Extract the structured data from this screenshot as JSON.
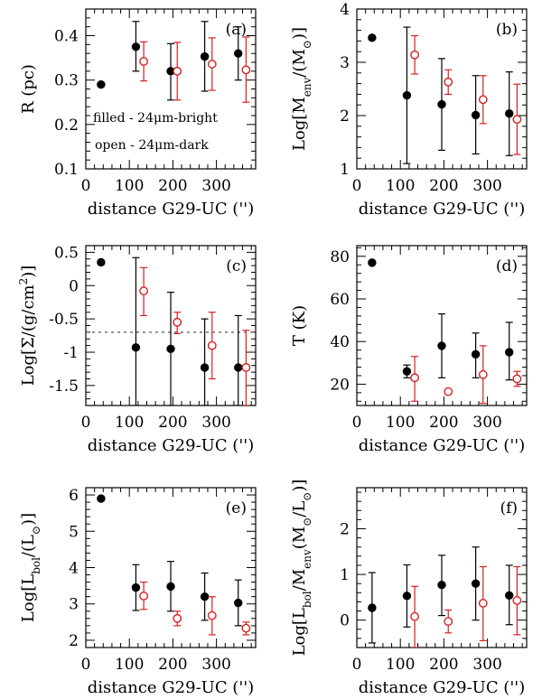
{
  "figure_colors": {
    "filled": "#000000",
    "open": "#d62020",
    "frame": "#000000",
    "reference_line": "#555555"
  },
  "legend": {
    "filled": "filled - 24μm-bright",
    "open": "open - 24μm-dark"
  },
  "chart_data": [
    {
      "type": "scatter",
      "panel_label": "(a)",
      "xlabel": "distance G29-UC ('')",
      "ylabel": "R (pc)",
      "xlim": [
        0,
        390
      ],
      "ylim": [
        0.1,
        0.46
      ],
      "xticks": [
        0,
        100,
        200,
        300
      ],
      "xtick_labels": [
        "0",
        "100",
        "200",
        "300"
      ],
      "yticks": [
        0.1,
        0.2,
        0.3,
        0.4
      ],
      "ytick_labels": [
        "0.1",
        "0.2",
        "0.3",
        "0.4"
      ],
      "show_legend": true,
      "series": [
        {
          "name": "filled",
          "marker": "filled-circle",
          "points": [
            {
              "x": 35,
              "y": 0.29,
              "lo": null,
              "hi": null
            },
            {
              "x": 115,
              "y": 0.375,
              "lo": 0.32,
              "hi": 0.432
            },
            {
              "x": 195,
              "y": 0.32,
              "lo": 0.255,
              "hi": 0.382
            },
            {
              "x": 273,
              "y": 0.353,
              "lo": 0.275,
              "hi": 0.432
            },
            {
              "x": 350,
              "y": 0.36,
              "lo": 0.3,
              "hi": 0.42
            }
          ]
        },
        {
          "name": "open",
          "marker": "open-circle",
          "points": [
            {
              "x": 133,
              "y": 0.342,
              "lo": 0.298,
              "hi": 0.386
            },
            {
              "x": 210,
              "y": 0.32,
              "lo": 0.255,
              "hi": 0.385
            },
            {
              "x": 290,
              "y": 0.336,
              "lo": 0.277,
              "hi": 0.395
            },
            {
              "x": 368,
              "y": 0.323,
              "lo": 0.25,
              "hi": 0.397
            }
          ]
        }
      ]
    },
    {
      "type": "scatter",
      "panel_label": "(b)",
      "xlabel": "distance G29-UC ('')",
      "ylabel": "Log[Menv/(M⊙)]",
      "xlim": [
        0,
        390
      ],
      "ylim": [
        1,
        4
      ],
      "xticks": [
        0,
        100,
        200,
        300
      ],
      "xtick_labels": [
        "0",
        "100",
        "200",
        "300"
      ],
      "yticks": [
        1,
        2,
        3,
        4
      ],
      "ytick_labels": [
        "1",
        "2",
        "3",
        "4"
      ],
      "series": [
        {
          "name": "filled",
          "marker": "filled-circle",
          "points": [
            {
              "x": 35,
              "y": 3.46,
              "lo": null,
              "hi": null
            },
            {
              "x": 115,
              "y": 2.38,
              "lo": 1.1,
              "hi": 3.66
            },
            {
              "x": 195,
              "y": 2.21,
              "lo": 1.35,
              "hi": 3.07
            },
            {
              "x": 273,
              "y": 2.01,
              "lo": 1.28,
              "hi": 2.75
            },
            {
              "x": 350,
              "y": 2.04,
              "lo": 1.25,
              "hi": 2.82
            }
          ]
        },
        {
          "name": "open",
          "marker": "open-circle",
          "points": [
            {
              "x": 133,
              "y": 3.14,
              "lo": 2.78,
              "hi": 3.5
            },
            {
              "x": 210,
              "y": 2.63,
              "lo": 2.4,
              "hi": 2.86
            },
            {
              "x": 290,
              "y": 2.3,
              "lo": 1.85,
              "hi": 2.75
            },
            {
              "x": 368,
              "y": 1.93,
              "lo": 1.27,
              "hi": 2.59
            }
          ]
        }
      ]
    },
    {
      "type": "scatter",
      "panel_label": "(c)",
      "xlabel": "distance G29-UC ('')",
      "ylabel": "Log[Σ/(g/cm²)]",
      "xlim": [
        0,
        390
      ],
      "ylim": [
        -1.8,
        0.6
      ],
      "xticks": [
        0,
        100,
        200,
        300
      ],
      "xtick_labels": [
        "0",
        "100",
        "200",
        "300"
      ],
      "yticks": [
        -1.5,
        -1,
        -0.5,
        0,
        0.5
      ],
      "ytick_labels": [
        "-1.5",
        "-1",
        "-0.5",
        "0",
        "0.5"
      ],
      "reference_line": -0.7,
      "series": [
        {
          "name": "filled",
          "marker": "filled-circle",
          "points": [
            {
              "x": 35,
              "y": 0.35,
              "lo": null,
              "hi": null
            },
            {
              "x": 115,
              "y": -0.93,
              "lo": -1.8,
              "hi": 0.42
            },
            {
              "x": 195,
              "y": -0.95,
              "lo": -1.8,
              "hi": -0.1
            },
            {
              "x": 273,
              "y": -1.23,
              "lo": -1.8,
              "hi": -0.5
            },
            {
              "x": 350,
              "y": -1.23,
              "lo": -1.8,
              "hi": -0.45
            }
          ]
        },
        {
          "name": "open",
          "marker": "open-circle",
          "points": [
            {
              "x": 133,
              "y": -0.08,
              "lo": -0.45,
              "hi": 0.27
            },
            {
              "x": 210,
              "y": -0.55,
              "lo": -0.72,
              "hi": -0.4
            },
            {
              "x": 290,
              "y": -0.9,
              "lo": -1.4,
              "hi": -0.4
            },
            {
              "x": 368,
              "y": -1.23,
              "lo": -1.8,
              "hi": -0.67
            }
          ]
        }
      ]
    },
    {
      "type": "scatter",
      "panel_label": "(d)",
      "xlabel": "distance G29-UC ('')",
      "ylabel": "T (K)",
      "xlim": [
        0,
        390
      ],
      "ylim": [
        10,
        85
      ],
      "xticks": [
        0,
        100,
        200,
        300
      ],
      "xtick_labels": [
        "0",
        "100",
        "200",
        "300"
      ],
      "yticks": [
        20,
        40,
        60,
        80
      ],
      "ytick_labels": [
        "20",
        "40",
        "60",
        "80"
      ],
      "series": [
        {
          "name": "filled",
          "marker": "filled-circle",
          "points": [
            {
              "x": 35,
              "y": 77,
              "lo": null,
              "hi": null
            },
            {
              "x": 115,
              "y": 26,
              "lo": 23,
              "hi": 29
            },
            {
              "x": 195,
              "y": 38,
              "lo": 23,
              "hi": 53
            },
            {
              "x": 273,
              "y": 34,
              "lo": 23,
              "hi": 44
            },
            {
              "x": 350,
              "y": 35,
              "lo": 22,
              "hi": 49
            }
          ]
        },
        {
          "name": "open",
          "marker": "open-circle",
          "points": [
            {
              "x": 133,
              "y": 23,
              "lo": 12,
              "hi": 33
            },
            {
              "x": 210,
              "y": 16.5,
              "lo": 15.5,
              "hi": 17.5
            },
            {
              "x": 290,
              "y": 24.5,
              "lo": 11,
              "hi": 38
            },
            {
              "x": 368,
              "y": 22.5,
              "lo": 19,
              "hi": 26
            }
          ]
        }
      ]
    },
    {
      "type": "scatter",
      "panel_label": "(e)",
      "xlabel": "distance G29-UC ('')",
      "ylabel": "Log[Lbol/(L⊙)]",
      "xlim": [
        0,
        390
      ],
      "ylim": [
        1.8,
        6.2
      ],
      "xticks": [
        0,
        100,
        200,
        300
      ],
      "xtick_labels": [
        "0",
        "100",
        "200",
        "300"
      ],
      "yticks": [
        2,
        3,
        4,
        5,
        6
      ],
      "ytick_labels": [
        "2",
        "3",
        "4",
        "5",
        "6"
      ],
      "series": [
        {
          "name": "filled",
          "marker": "filled-circle",
          "points": [
            {
              "x": 35,
              "y": 5.9,
              "lo": null,
              "hi": null
            },
            {
              "x": 115,
              "y": 3.45,
              "lo": 2.82,
              "hi": 4.08
            },
            {
              "x": 195,
              "y": 3.48,
              "lo": 2.8,
              "hi": 4.17
            },
            {
              "x": 273,
              "y": 3.2,
              "lo": 2.55,
              "hi": 3.85
            },
            {
              "x": 350,
              "y": 3.03,
              "lo": 2.4,
              "hi": 3.66
            }
          ]
        },
        {
          "name": "open",
          "marker": "open-circle",
          "points": [
            {
              "x": 133,
              "y": 3.22,
              "lo": 2.85,
              "hi": 3.6
            },
            {
              "x": 210,
              "y": 2.6,
              "lo": 2.4,
              "hi": 2.8
            },
            {
              "x": 290,
              "y": 2.68,
              "lo": 2.15,
              "hi": 3.2
            },
            {
              "x": 368,
              "y": 2.33,
              "lo": 2.15,
              "hi": 2.5
            }
          ]
        }
      ]
    },
    {
      "type": "scatter",
      "panel_label": "(f)",
      "xlabel": "distance G29-UC ('')",
      "ylabel": "Log[Lbol/Menv(M⊙/L⊙)]",
      "xlim": [
        0,
        390
      ],
      "ylim": [
        -0.6,
        2.9
      ],
      "xticks": [
        0,
        100,
        200,
        300
      ],
      "xtick_labels": [
        "0",
        "100",
        "200",
        "300"
      ],
      "yticks": [
        0,
        1,
        2
      ],
      "ytick_labels": [
        "0",
        "1",
        "2"
      ],
      "series": [
        {
          "name": "filled",
          "marker": "filled-circle",
          "points": [
            {
              "x": 35,
              "y": 0.27,
              "lo": -0.5,
              "hi": 1.04
            },
            {
              "x": 115,
              "y": 0.53,
              "lo": -0.15,
              "hi": 1.21
            },
            {
              "x": 195,
              "y": 0.77,
              "lo": 0.1,
              "hi": 1.42
            },
            {
              "x": 273,
              "y": 0.8,
              "lo": 0.0,
              "hi": 1.6
            },
            {
              "x": 350,
              "y": 0.54,
              "lo": -0.1,
              "hi": 1.2
            }
          ]
        },
        {
          "name": "open",
          "marker": "open-circle",
          "points": [
            {
              "x": 133,
              "y": 0.08,
              "lo": -0.6,
              "hi": 0.74
            },
            {
              "x": 210,
              "y": -0.03,
              "lo": -0.28,
              "hi": 0.22
            },
            {
              "x": 290,
              "y": 0.37,
              "lo": -0.45,
              "hi": 1.17
            },
            {
              "x": 368,
              "y": 0.43,
              "lo": -0.32,
              "hi": 1.17
            }
          ]
        }
      ]
    }
  ]
}
